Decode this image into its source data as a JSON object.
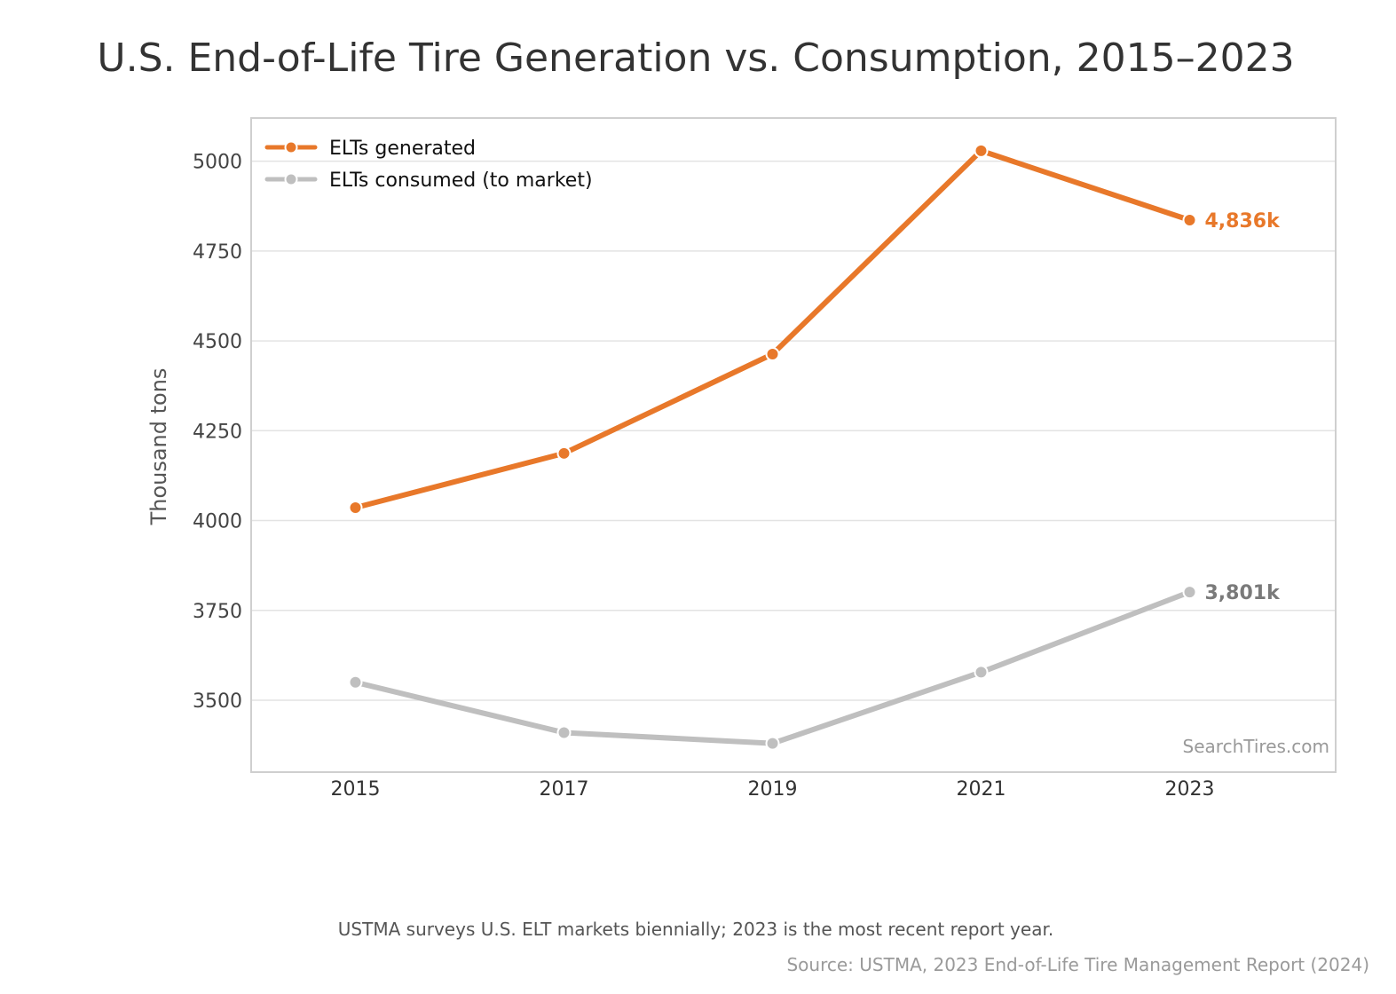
{
  "chart_data": {
    "type": "line",
    "title": "U.S. End-of-Life Tire Generation vs. Consumption, 2015–2023",
    "xlabel": "",
    "ylabel": "Thousand tons",
    "x": [
      2015,
      2017,
      2019,
      2021,
      2023
    ],
    "x_tick_labels": [
      "2015",
      "2017",
      "2019",
      "2021",
      "2023"
    ],
    "y_ticks": [
      3500,
      3750,
      4000,
      4250,
      4500,
      4750,
      5000
    ],
    "y_tick_labels": [
      "3500",
      "3750",
      "4000",
      "4250",
      "4500",
      "4750",
      "5000"
    ],
    "ylim": [
      3300,
      5120
    ],
    "xlim": [
      2014,
      2024.4
    ],
    "grid": "horizontal",
    "legend_position": "top-left",
    "series": [
      {
        "name": "ELTs generated",
        "values": [
          4036,
          4187,
          4463,
          5029,
          4836
        ],
        "color": "#e8782a",
        "end_label": "4,836k"
      },
      {
        "name": "ELTs consumed (to market)",
        "values": [
          3550,
          3410,
          3380,
          3578,
          3801
        ],
        "color": "#bfbfbf",
        "end_label": "3,801k",
        "end_label_color": "#7a7a7a"
      }
    ],
    "watermark": "SearchTires.com",
    "footnote": "USTMA surveys U.S. ELT markets biennially; 2023 is the most recent report year.",
    "source": "Source: USTMA, 2023 End-of-Life Tire Management Report (2024)"
  }
}
